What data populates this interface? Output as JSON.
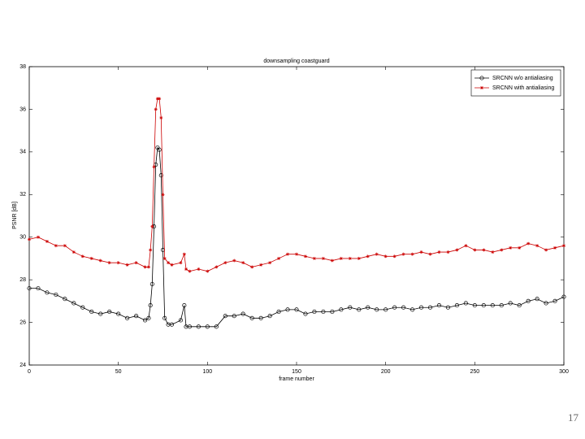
{
  "chart_data": {
    "type": "line",
    "title": "downsampling coastguard",
    "x_label": "frame number",
    "y_label": "PSNR [dB]",
    "x": [
      0,
      5,
      10,
      15,
      20,
      25,
      30,
      35,
      40,
      45,
      50,
      55,
      60,
      65,
      67,
      68,
      69,
      70,
      71,
      72,
      73,
      74,
      75,
      76,
      78,
      80,
      85,
      87,
      88,
      90,
      95,
      100,
      105,
      110,
      115,
      120,
      125,
      130,
      135,
      140,
      145,
      150,
      155,
      160,
      165,
      170,
      175,
      180,
      185,
      190,
      195,
      200,
      205,
      210,
      215,
      220,
      225,
      230,
      235,
      240,
      245,
      250,
      255,
      260,
      265,
      270,
      275,
      280,
      285,
      290,
      295,
      300
    ],
    "series": [
      {
        "name": "SRCNN w/o antialiasing",
        "color": "#000000",
        "marker": "circle",
        "values": [
          27.6,
          27.6,
          27.4,
          27.3,
          27.1,
          26.9,
          26.7,
          26.5,
          26.4,
          26.5,
          26.4,
          26.2,
          26.3,
          26.1,
          26.2,
          26.8,
          27.8,
          30.5,
          33.4,
          34.2,
          34.1,
          32.9,
          29.4,
          26.2,
          25.9,
          25.9,
          26.1,
          26.8,
          25.8,
          25.8,
          25.8,
          25.8,
          25.8,
          26.3,
          26.3,
          26.4,
          26.2,
          26.2,
          26.3,
          26.5,
          26.6,
          26.6,
          26.4,
          26.5,
          26.5,
          26.5,
          26.6,
          26.7,
          26.6,
          26.7,
          26.6,
          26.6,
          26.7,
          26.7,
          26.6,
          26.7,
          26.7,
          26.8,
          26.7,
          26.8,
          26.9,
          26.8,
          26.8,
          26.8,
          26.8,
          26.9,
          26.8,
          27.0,
          27.1,
          26.9,
          27.0,
          27.2
        ]
      },
      {
        "name": "SRCNN with antialiasing",
        "color": "#cc0000",
        "marker": "star",
        "values": [
          29.9,
          30.0,
          29.8,
          29.6,
          29.6,
          29.3,
          29.1,
          29.0,
          28.9,
          28.8,
          28.8,
          28.7,
          28.8,
          28.6,
          28.6,
          29.4,
          30.5,
          33.3,
          36.0,
          36.5,
          36.5,
          35.6,
          32.0,
          29.0,
          28.8,
          28.7,
          28.8,
          29.2,
          28.5,
          28.4,
          28.5,
          28.4,
          28.6,
          28.8,
          28.9,
          28.8,
          28.6,
          28.7,
          28.8,
          29.0,
          29.2,
          29.2,
          29.1,
          29.0,
          29.0,
          28.9,
          29.0,
          29.0,
          29.0,
          29.1,
          29.2,
          29.1,
          29.1,
          29.2,
          29.2,
          29.3,
          29.2,
          29.3,
          29.3,
          29.4,
          29.6,
          29.4,
          29.4,
          29.3,
          29.4,
          29.5,
          29.5,
          29.7,
          29.6,
          29.4,
          29.5,
          29.6
        ]
      }
    ],
    "xlim": [
      0,
      300
    ],
    "xticks": [
      0,
      50,
      100,
      150,
      200,
      250,
      300
    ],
    "ylim": [
      24,
      38
    ],
    "yticks": [
      24,
      26,
      28,
      30,
      32,
      34,
      36,
      38
    ],
    "grid": false,
    "legend": "north-east"
  },
  "slide": {
    "page_number": "17"
  }
}
